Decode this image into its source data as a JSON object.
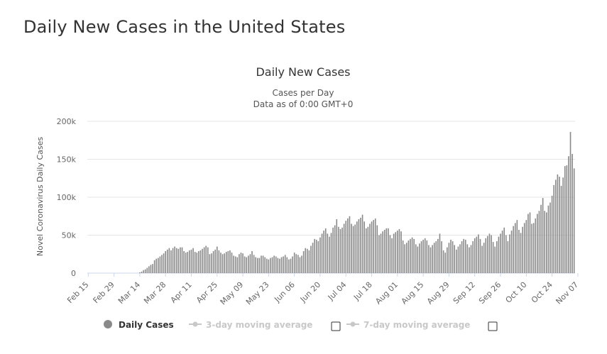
{
  "page": {
    "title": "Daily New Cases in the United States"
  },
  "colors": {
    "bar": "#8a8a8a",
    "grid": "#e6e6e6",
    "text": "#333333",
    "axis_text": "#666666",
    "legend_inactive": "#c8c8c8"
  },
  "legend": {
    "items": [
      {
        "label": "Daily Cases",
        "marker": "circle-icon",
        "active": true
      },
      {
        "label": "3-day moving average",
        "marker": "line-dot-icon",
        "active": false
      },
      {
        "label": "7-day moving average",
        "marker": "line-dot-icon",
        "active": false
      }
    ]
  },
  "chart_data": {
    "type": "bar",
    "title": "Daily New Cases",
    "subtitle_lines": [
      "Cases per Day",
      "Data as of 0:00 GMT+0"
    ],
    "ylabel": "Novel Coronavirus Daily Cases",
    "xlabel": "",
    "ylim": [
      0,
      200000
    ],
    "yticks": [
      0,
      50000,
      100000,
      150000,
      200000
    ],
    "ytick_labels": [
      "0",
      "50k",
      "100k",
      "150k",
      "200k"
    ],
    "xtick_labels": [
      "Feb 15",
      "Feb 29",
      "Mar 14",
      "Mar 28",
      "Apr 11",
      "Apr 25",
      "May 09",
      "May 23",
      "Jun 06",
      "Jun 20",
      "Jul 04",
      "Jul 18",
      "Aug 01",
      "Aug 15",
      "Aug 29",
      "Sep 12",
      "Sep 26",
      "Oct 10",
      "Oct 24",
      "Nov 07"
    ],
    "xtick_day_index": [
      0,
      14,
      28,
      42,
      56,
      70,
      84,
      98,
      112,
      126,
      140,
      154,
      168,
      182,
      196,
      210,
      224,
      238,
      252,
      266
    ],
    "grid": true,
    "legend_position": "bottom",
    "series": [
      {
        "name": "Daily Cases",
        "start": "Feb 15",
        "values": [
          0,
          0,
          0,
          0,
          0,
          0,
          0,
          0,
          0,
          0,
          0,
          0,
          0,
          0,
          0,
          0,
          0,
          0,
          0,
          0,
          0,
          0,
          0,
          0,
          0,
          0,
          0,
          0,
          1000,
          2000,
          4000,
          5000,
          7000,
          9000,
          11000,
          12000,
          17000,
          19000,
          20000,
          22000,
          24000,
          26000,
          29000,
          31000,
          33000,
          30000,
          33000,
          35000,
          33000,
          32000,
          34000,
          34000,
          29000,
          27000,
          28000,
          30000,
          31000,
          33000,
          28000,
          27000,
          29000,
          30000,
          32000,
          34000,
          36000,
          34000,
          25000,
          26000,
          29000,
          31000,
          35000,
          30000,
          27000,
          25000,
          26000,
          28000,
          29000,
          30000,
          27000,
          23000,
          22000,
          21000,
          25000,
          27000,
          26000,
          22000,
          21000,
          23000,
          25000,
          29000,
          24000,
          21000,
          20000,
          20000,
          23000,
          23000,
          21000,
          19000,
          18000,
          20000,
          21000,
          23000,
          22000,
          20000,
          19000,
          21000,
          22000,
          24000,
          21000,
          18000,
          19000,
          22000,
          27000,
          25000,
          24000,
          21000,
          23000,
          29000,
          33000,
          32000,
          30000,
          36000,
          40000,
          45000,
          44000,
          42000,
          47000,
          52000,
          56000,
          59000,
          52000,
          48000,
          53000,
          60000,
          63000,
          71000,
          61000,
          58000,
          60000,
          65000,
          69000,
          72000,
          75000,
          65000,
          62000,
          64000,
          68000,
          71000,
          73000,
          77000,
          68000,
          59000,
          61000,
          65000,
          68000,
          70000,
          72000,
          63000,
          50000,
          52000,
          55000,
          57000,
          59000,
          59000,
          50000,
          46000,
          52000,
          54000,
          56000,
          58000,
          55000,
          43000,
          38000,
          40000,
          43000,
          45000,
          47000,
          45000,
          38000,
          35000,
          39000,
          42000,
          44000,
          46000,
          43000,
          37000,
          34000,
          37000,
          40000,
          42000,
          45000,
          52000,
          42000,
          30000,
          27000,
          34000,
          40000,
          44000,
          42000,
          37000,
          31000,
          35000,
          38000,
          42000,
          45000,
          44000,
          38000,
          34000,
          37000,
          42000,
          46000,
          48000,
          51000,
          45000,
          36000,
          40000,
          46000,
          49000,
          52000,
          50000,
          41000,
          35000,
          42000,
          48000,
          52000,
          56000,
          60000,
          50000,
          42000,
          51000,
          56000,
          62000,
          66000,
          70000,
          57000,
          53000,
          61000,
          66000,
          70000,
          78000,
          80000,
          65000,
          66000,
          72000,
          78000,
          82000,
          90000,
          99000,
          82000,
          80000,
          89000,
          93000,
          102000,
          116000,
          123000,
          130000,
          127000,
          115000,
          126000,
          141000,
          142000,
          154000,
          186000,
          157000,
          138000
        ]
      }
    ]
  }
}
